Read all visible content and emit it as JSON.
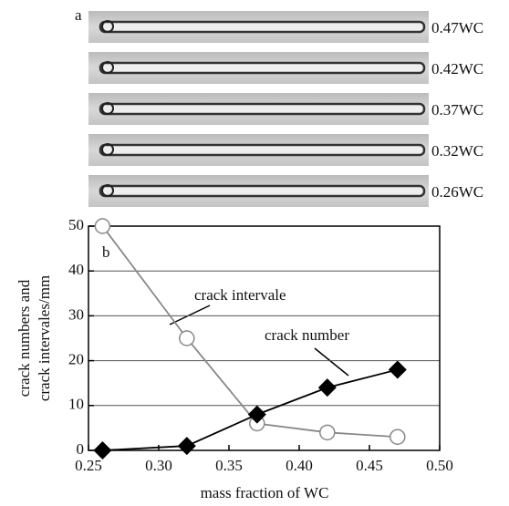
{
  "panel_a": {
    "label": "a",
    "tracks": [
      "0.47WC",
      "0.42WC",
      "0.37WC",
      "0.32WC",
      "0.26WC"
    ]
  },
  "chart_data": {
    "type": "line",
    "panel_label": "b",
    "x_label": "mass fraction of WC",
    "y_label_lines": [
      "crack numbers and",
      "crack intervales/mm"
    ],
    "x": [
      0.26,
      0.32,
      0.37,
      0.42,
      0.47
    ],
    "series": [
      {
        "name": "crack intervale",
        "color": "#888888",
        "marker": "circle-open",
        "values": [
          50,
          25,
          6,
          4,
          3
        ]
      },
      {
        "name": "crack number",
        "color": "#000000",
        "marker": "diamond",
        "values": [
          0,
          1,
          8,
          14,
          18
        ]
      }
    ],
    "xlim": [
      0.25,
      0.5
    ],
    "xticks": [
      0.25,
      {
        "value": 0.3,
        "label": "0.30"
      },
      0.35,
      {
        "value": 0.4,
        "label": "0.40"
      },
      0.45,
      {
        "value": 0.5,
        "label": "0.50"
      }
    ],
    "ylim": [
      0,
      50
    ],
    "yticks": [
      0,
      10,
      20,
      30,
      40,
      50
    ],
    "grid": true
  }
}
